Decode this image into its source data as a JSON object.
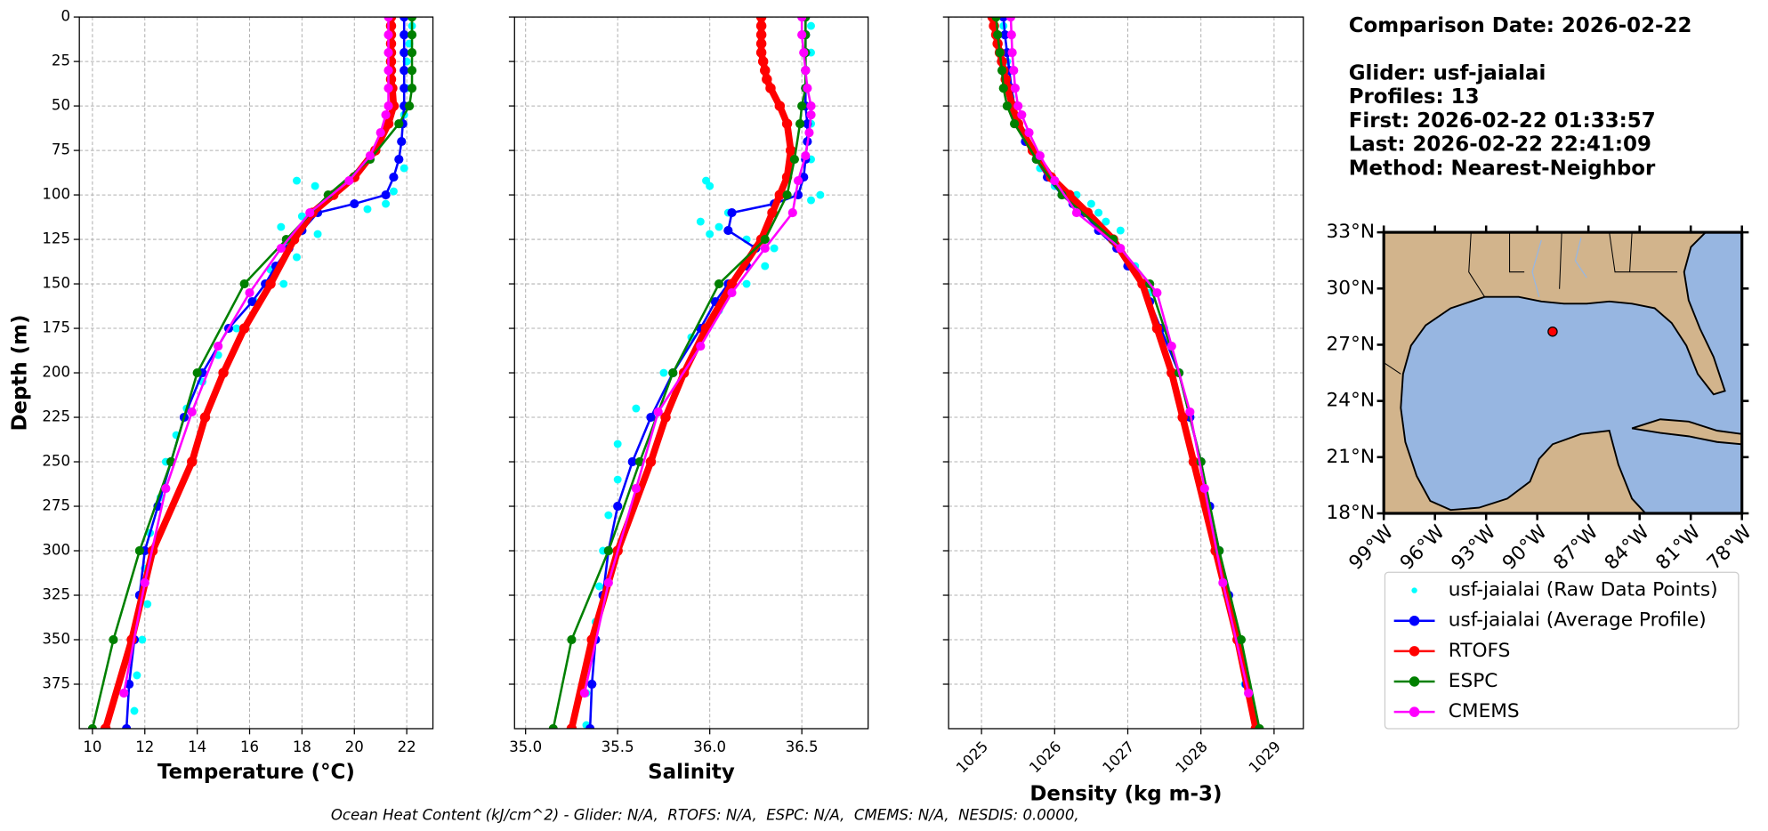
{
  "chart_data": [
    {
      "type": "line",
      "ylabel": "Depth (m)",
      "xlabel": "Temperature (°C)",
      "ylim": [
        0,
        400
      ],
      "y_inverted": true,
      "grid": true,
      "yticks": [
        0,
        25,
        50,
        75,
        100,
        125,
        150,
        175,
        200,
        225,
        250,
        275,
        300,
        325,
        350,
        375
      ],
      "xlim": [
        9.5,
        23.0
      ],
      "xticks": [
        10,
        12,
        14,
        16,
        18,
        20,
        22
      ],
      "series": [
        {
          "name": "usf-jaialai (Raw Data Points)",
          "color": "#00ffff",
          "style": "scatter",
          "x": [
            22.2,
            22.1,
            22.0,
            22.0,
            21.9,
            21.8,
            21.9,
            17.8,
            18.5,
            21.5,
            19.0,
            21.2,
            20.5,
            18.0,
            17.2,
            18.6,
            17.5,
            17.8,
            16.8,
            17.3,
            16.2,
            15.5,
            14.8,
            14.2,
            13.6,
            13.2,
            12.8,
            12.6,
            12.2,
            12.0,
            12.1,
            11.9,
            11.7,
            11.6
          ],
          "y": [
            5,
            15,
            25,
            40,
            55,
            70,
            85,
            92,
            95,
            98,
            102,
            105,
            108,
            112,
            118,
            122,
            128,
            135,
            142,
            150,
            160,
            175,
            190,
            205,
            220,
            235,
            250,
            270,
            290,
            310,
            330,
            350,
            370,
            390
          ]
        },
        {
          "name": "usf-jaialai (Average Profile)",
          "color": "#0000ff",
          "style": "line",
          "x": [
            21.9,
            21.9,
            21.9,
            21.9,
            21.9,
            21.9,
            21.85,
            21.8,
            21.7,
            21.5,
            21.2,
            20.0,
            18.6,
            18.0,
            17.5,
            17.0,
            16.6,
            16.1,
            15.2,
            14.2,
            13.5,
            13.0,
            12.5,
            12.0,
            11.8,
            11.6,
            11.4,
            11.3
          ],
          "y": [
            0,
            10,
            20,
            30,
            40,
            50,
            60,
            70,
            80,
            90,
            100,
            105,
            110,
            120,
            130,
            140,
            150,
            160,
            175,
            200,
            225,
            250,
            275,
            300,
            325,
            350,
            375,
            400
          ]
        },
        {
          "name": "RTOFS",
          "color": "#ff0000",
          "style": "line",
          "x": [
            21.4,
            21.4,
            21.4,
            21.4,
            21.4,
            21.4,
            21.4,
            21.4,
            21.45,
            21.5,
            21.3,
            20.8,
            20.0,
            19.2,
            18.4,
            17.7,
            16.8,
            15.8,
            15.0,
            14.3,
            13.8,
            12.3,
            11.5,
            10.5
          ],
          "y": [
            0,
            5,
            10,
            15,
            20,
            25,
            30,
            35,
            40,
            50,
            60,
            75,
            90,
            100,
            110,
            125,
            150,
            175,
            200,
            225,
            250,
            300,
            350,
            400
          ]
        },
        {
          "name": "ESPC",
          "color": "#008000",
          "style": "line",
          "x": [
            22.2,
            22.2,
            22.2,
            22.2,
            22.2,
            22.1,
            21.7,
            20.6,
            19.0,
            17.4,
            15.8,
            14.0,
            13.0,
            11.8,
            10.8,
            10.0
          ],
          "y": [
            0,
            10,
            20,
            30,
            40,
            50,
            60,
            80,
            100,
            125,
            150,
            200,
            250,
            300,
            350,
            400
          ]
        },
        {
          "name": "CMEMS",
          "color": "#ff00ff",
          "style": "line",
          "x": [
            21.3,
            21.3,
            21.3,
            21.3,
            21.3,
            21.3,
            21.2,
            21.0,
            20.6,
            19.8,
            18.3,
            17.2,
            16.0,
            14.8,
            13.8,
            12.8,
            12.0,
            11.2
          ],
          "y": [
            0,
            10,
            20,
            30,
            40,
            50,
            55,
            65,
            78,
            92,
            110,
            130,
            155,
            185,
            222,
            265,
            318,
            380
          ]
        }
      ]
    },
    {
      "type": "line",
      "xlabel": "Salinity",
      "grid": true,
      "xlim": [
        34.94,
        36.86
      ],
      "xticks": [
        {
          "value": 35,
          "label": "35.0"
        },
        35.5,
        {
          "value": 36,
          "label": "36.0"
        },
        36.5
      ],
      "series": [
        {
          "color": "#00ffff",
          "style": "scatter",
          "x": [
            36.55,
            36.55,
            36.52,
            36.55,
            36.55,
            35.98,
            36.0,
            36.6,
            36.55,
            36.1,
            35.95,
            36.05,
            36.0,
            36.2,
            36.35,
            36.3,
            36.2,
            36.05,
            35.9,
            35.75,
            35.6,
            35.5,
            35.5,
            35.45,
            35.42,
            35.4,
            35.38,
            35.35,
            35.33,
            35.33
          ],
          "y": [
            5,
            20,
            40,
            60,
            80,
            92,
            95,
            100,
            103,
            110,
            115,
            118,
            122,
            125,
            130,
            140,
            150,
            165,
            180,
            200,
            220,
            240,
            260,
            280,
            300,
            320,
            340,
            360,
            380,
            398
          ]
        },
        {
          "color": "#0000ff",
          "style": "line",
          "x": [
            36.52,
            36.52,
            36.52,
            36.52,
            36.52,
            36.52,
            36.53,
            36.53,
            36.52,
            36.51,
            36.48,
            36.35,
            36.12,
            36.1,
            36.25,
            36.2,
            36.1,
            36.03,
            35.95,
            35.8,
            35.68,
            35.58,
            35.5,
            35.45,
            35.42,
            35.38,
            35.36,
            35.35
          ],
          "y": [
            0,
            10,
            20,
            30,
            40,
            50,
            60,
            70,
            80,
            90,
            100,
            105,
            110,
            120,
            130,
            140,
            150,
            160,
            175,
            200,
            225,
            250,
            275,
            300,
            325,
            350,
            375,
            400
          ]
        },
        {
          "color": "#ff0000",
          "style": "line",
          "x": [
            36.28,
            36.28,
            36.28,
            36.28,
            36.28,
            36.29,
            36.3,
            36.31,
            36.33,
            36.38,
            36.42,
            36.44,
            36.42,
            36.38,
            36.34,
            36.28,
            36.12,
            35.98,
            35.86,
            35.76,
            35.68,
            35.5,
            35.36,
            35.25
          ],
          "y": [
            0,
            5,
            10,
            15,
            20,
            25,
            30,
            35,
            40,
            50,
            60,
            75,
            90,
            100,
            110,
            125,
            150,
            175,
            200,
            225,
            250,
            300,
            350,
            400
          ]
        },
        {
          "color": "#008000",
          "style": "line",
          "x": [
            36.52,
            36.52,
            36.52,
            36.52,
            36.52,
            36.5,
            36.49,
            36.46,
            36.42,
            36.3,
            36.05,
            35.8,
            35.62,
            35.45,
            35.25,
            35.15
          ],
          "y": [
            0,
            10,
            20,
            30,
            40,
            50,
            60,
            80,
            100,
            125,
            150,
            200,
            250,
            300,
            350,
            400
          ]
        },
        {
          "color": "#ff00ff",
          "style": "line",
          "x": [
            36.5,
            36.5,
            36.51,
            36.52,
            36.53,
            36.55,
            36.55,
            36.54,
            36.52,
            36.48,
            36.45,
            36.3,
            36.12,
            35.95,
            35.72,
            35.6,
            35.45,
            35.32
          ],
          "y": [
            0,
            10,
            20,
            30,
            40,
            50,
            55,
            65,
            78,
            92,
            110,
            130,
            155,
            185,
            222,
            265,
            318,
            380
          ]
        }
      ]
    },
    {
      "type": "line",
      "xlabel": "Density (kg m-3)",
      "grid": true,
      "xlim": [
        1024.55,
        1029.4
      ],
      "xticks": [
        1025,
        1026,
        1027,
        1028,
        1029
      ],
      "series": [
        {
          "color": "#00ffff",
          "style": "scatter",
          "x": [
            1025.3,
            1025.35,
            1025.4,
            1025.6,
            1025.8,
            1026.0,
            1026.3,
            1026.5,
            1026.6,
            1026.7,
            1026.9,
            1026.9,
            1027.1,
            1027.3,
            1027.5,
            1027.7,
            1027.85,
            1028.0,
            1028.1,
            1028.25,
            1028.35,
            1028.5,
            1028.6,
            1028.75
          ],
          "y": [
            5,
            25,
            45,
            65,
            85,
            95,
            100,
            105,
            110,
            115,
            120,
            130,
            140,
            155,
            175,
            200,
            225,
            250,
            275,
            300,
            325,
            350,
            375,
            398
          ]
        },
        {
          "color": "#0000ff",
          "style": "line",
          "x": [
            1025.3,
            1025.32,
            1025.35,
            1025.38,
            1025.41,
            1025.45,
            1025.5,
            1025.6,
            1025.75,
            1025.9,
            1026.1,
            1026.25,
            1026.4,
            1026.6,
            1026.85,
            1027.0,
            1027.2,
            1027.3,
            1027.45,
            1027.7,
            1027.85,
            1028.0,
            1028.12,
            1028.25,
            1028.38,
            1028.5,
            1028.62,
            1028.75
          ],
          "y": [
            0,
            10,
            20,
            30,
            40,
            50,
            60,
            70,
            80,
            90,
            100,
            105,
            110,
            120,
            130,
            140,
            150,
            160,
            175,
            200,
            225,
            250,
            275,
            300,
            325,
            350,
            375,
            400
          ]
        },
        {
          "color": "#ff0000",
          "style": "line",
          "x": [
            1025.15,
            1025.17,
            1025.2,
            1025.22,
            1025.25,
            1025.28,
            1025.3,
            1025.33,
            1025.36,
            1025.42,
            1025.5,
            1025.7,
            1025.95,
            1026.2,
            1026.45,
            1026.8,
            1027.2,
            1027.4,
            1027.6,
            1027.75,
            1027.9,
            1028.2,
            1028.5,
            1028.75
          ],
          "y": [
            0,
            5,
            10,
            15,
            20,
            25,
            30,
            35,
            40,
            50,
            60,
            75,
            90,
            100,
            110,
            125,
            150,
            175,
            200,
            225,
            250,
            300,
            350,
            400
          ]
        },
        {
          "color": "#008000",
          "style": "line",
          "x": [
            1025.2,
            1025.22,
            1025.25,
            1025.28,
            1025.3,
            1025.35,
            1025.45,
            1025.75,
            1026.1,
            1026.8,
            1027.3,
            1027.7,
            1028.0,
            1028.25,
            1028.55,
            1028.8
          ],
          "y": [
            0,
            10,
            20,
            30,
            40,
            50,
            60,
            80,
            100,
            125,
            150,
            200,
            250,
            300,
            350,
            400
          ]
        },
        {
          "color": "#ff00ff",
          "style": "line",
          "x": [
            1025.4,
            1025.41,
            1025.42,
            1025.44,
            1025.46,
            1025.5,
            1025.55,
            1025.65,
            1025.8,
            1026.0,
            1026.3,
            1026.9,
            1027.4,
            1027.6,
            1027.85,
            1028.05,
            1028.3,
            1028.65
          ],
          "y": [
            0,
            10,
            20,
            30,
            40,
            50,
            55,
            65,
            78,
            92,
            110,
            130,
            155,
            185,
            222,
            265,
            318,
            380
          ]
        }
      ]
    }
  ],
  "info": {
    "comparison": "Comparison Date: 2026-02-22",
    "details": [
      "Glider: usf-jaialai",
      "Profiles: 13",
      "First: 2026-02-22 01:33:57",
      "Last: 2026-02-22 22:41:09",
      "Method: Nearest-Neighbor"
    ]
  },
  "map": {
    "xlim": [
      -99,
      -78
    ],
    "ylim": [
      18,
      33
    ],
    "lon_ticks": [
      {
        "value": -99,
        "label": "99°W"
      },
      {
        "value": -96,
        "label": "96°W"
      },
      {
        "value": -93,
        "label": "93°W"
      },
      {
        "value": -90,
        "label": "90°W"
      },
      {
        "value": -87,
        "label": "87°W"
      },
      {
        "value": -84,
        "label": "84°W"
      },
      {
        "value": -81,
        "label": "81°W"
      },
      {
        "value": -78,
        "label": "78°W"
      }
    ],
    "lat_ticks": [
      {
        "value": 33,
        "label": "33°N"
      },
      {
        "value": 30,
        "label": "30°N"
      },
      {
        "value": 27,
        "label": "27°N"
      },
      {
        "value": 24,
        "label": "24°N"
      },
      {
        "value": 21,
        "label": "21°N"
      },
      {
        "value": 18,
        "label": "18°N"
      }
    ],
    "glider": {
      "lon": -89.1,
      "lat": 27.7,
      "color": "#ff0000"
    }
  },
  "footer": "Ocean Heat Content (kJ/cm^2) - Glider: N/A,  RTOFS: N/A,  ESPC: N/A,  CMEMS: N/A,  NESDIS: 0.0000,"
}
